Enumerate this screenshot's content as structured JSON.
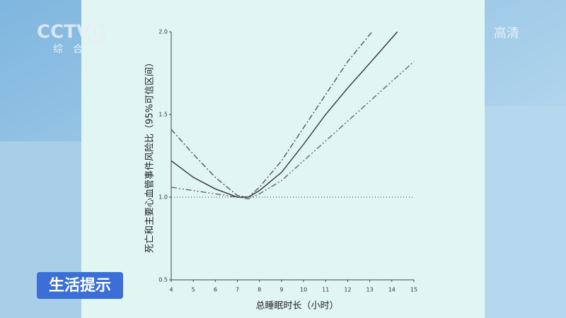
{
  "overlay": {
    "channel_logo": "CCTV",
    "channel_number": "1",
    "channel_name": "综合",
    "quality": "高清",
    "banner": "生活提示"
  },
  "chart_data": {
    "type": "line",
    "xlabel": "总睡眠时长（小时）",
    "ylabel": "死亡和主要心血管事件风险比（95%可信区间）",
    "xlim": [
      4,
      15
    ],
    "xticks": [
      4,
      5,
      6,
      7,
      8,
      9,
      10,
      11,
      12,
      13,
      14,
      15
    ],
    "ylim": [
      0.5,
      2.0
    ],
    "yticks": [
      {
        "value": 0.5,
        "label": "0.5"
      },
      {
        "value": 1.0,
        "label": "1.0"
      },
      {
        "value": 1.5,
        "label": "1.5"
      },
      {
        "value": 2.0,
        "label": "2.0"
      }
    ],
    "reference_line": 1,
    "series": [
      {
        "style": "solid",
        "color": "#333333",
        "x": [
          4,
          5,
          6,
          7,
          7.5,
          8,
          9,
          10,
          11,
          12,
          13,
          14.25
        ],
        "values": [
          1.22,
          1.12,
          1.05,
          1.0,
          1.0,
          1.04,
          1.15,
          1.32,
          1.5,
          1.66,
          1.81,
          2.0
        ]
      },
      {
        "style": "dashdot",
        "color": "#555555",
        "x": [
          4,
          5,
          6,
          7,
          7.5,
          8,
          9,
          10,
          11,
          12,
          13.1
        ],
        "values": [
          1.41,
          1.26,
          1.12,
          1.01,
          1.0,
          1.06,
          1.22,
          1.42,
          1.62,
          1.82,
          2.0
        ]
      },
      {
        "style": "dashdotdot",
        "color": "#666666",
        "x": [
          4,
          5,
          6,
          7,
          7.5,
          8,
          9,
          10,
          11,
          12,
          13,
          14,
          15
        ],
        "values": [
          1.06,
          1.04,
          1.02,
          1.0,
          0.99,
          1.02,
          1.1,
          1.22,
          1.34,
          1.46,
          1.58,
          1.7,
          1.82
        ]
      }
    ]
  }
}
